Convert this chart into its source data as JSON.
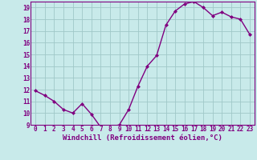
{
  "x": [
    0,
    1,
    2,
    3,
    4,
    5,
    6,
    7,
    8,
    9,
    10,
    11,
    12,
    13,
    14,
    15,
    16,
    17,
    18,
    19,
    20,
    21,
    22,
    23
  ],
  "y": [
    11.9,
    11.5,
    11.0,
    10.3,
    10.0,
    10.8,
    9.9,
    8.8,
    8.8,
    9.0,
    10.3,
    12.3,
    14.0,
    14.9,
    17.5,
    18.7,
    19.3,
    19.5,
    19.0,
    18.3,
    18.6,
    18.2,
    18.0,
    16.7
  ],
  "line_color": "#800080",
  "marker": "D",
  "marker_size": 2,
  "bg_color": "#c8eaea",
  "grid_color": "#a0c8c8",
  "axis_color": "#800080",
  "xlabel": "Windchill (Refroidissement éolien,°C)",
  "ylim": [
    9,
    19.5
  ],
  "xlim": [
    -0.5,
    23.5
  ],
  "yticks": [
    9,
    10,
    11,
    12,
    13,
    14,
    15,
    16,
    17,
    18,
    19
  ],
  "xticks": [
    0,
    1,
    2,
    3,
    4,
    5,
    6,
    7,
    8,
    9,
    10,
    11,
    12,
    13,
    14,
    15,
    16,
    17,
    18,
    19,
    20,
    21,
    22,
    23
  ],
  "tick_fontsize": 5.5,
  "xlabel_fontsize": 6.5,
  "line_width": 1.0
}
